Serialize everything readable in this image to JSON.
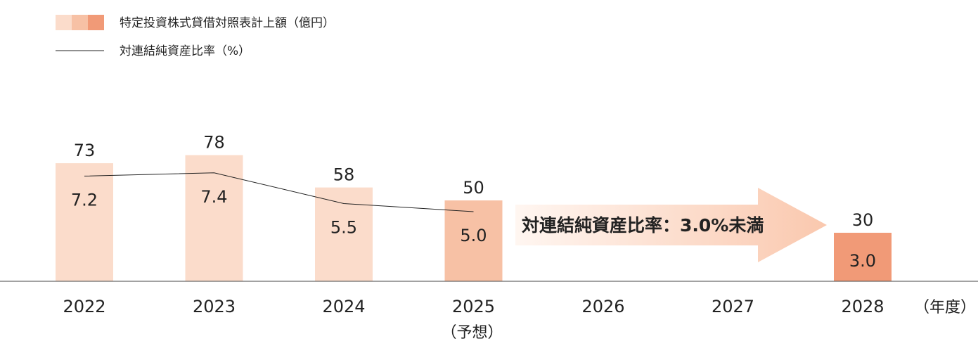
{
  "legend": {
    "bar_label": "特定投資株式貸借対照表計上額（億円）",
    "line_label": "対連結純資産比率（%）"
  },
  "colors": {
    "bar_light": "#fbdccb",
    "bar_mid": "#f7c1a5",
    "bar_dark": "#f19a77",
    "line": "#222222",
    "arrow_start": "#fff6f1",
    "arrow_end": "#fac8ae"
  },
  "arrow": {
    "text": "対連結純資産比率：3.0%未満"
  },
  "chart_data": {
    "type": "bar",
    "categories": [
      "2022",
      "2023",
      "2024",
      "2025",
      "2026",
      "2027",
      "2028"
    ],
    "category_sublabels": [
      "",
      "",
      "",
      "（予想）",
      "",
      "",
      ""
    ],
    "x_unit": "（年度）",
    "series": [
      {
        "name": "特定投資株式貸借対照表計上額（億円）",
        "type": "bar",
        "values": [
          73,
          78,
          58,
          50,
          null,
          null,
          30
        ],
        "labels": [
          "73",
          "78",
          "58",
          "50",
          "",
          "",
          "30"
        ]
      },
      {
        "name": "対連結純資産比率（%）",
        "type": "line",
        "values": [
          7.2,
          7.4,
          5.5,
          5.0,
          null,
          null,
          3.0
        ],
        "labels": [
          "7.2",
          "7.4",
          "5.5",
          "5.0",
          "",
          "",
          "3.0"
        ]
      }
    ],
    "bar_shade": [
      "light",
      "light",
      "light",
      "mid",
      "",
      "",
      "dark"
    ],
    "ylim": [
      0,
      100
    ],
    "grid": false
  }
}
